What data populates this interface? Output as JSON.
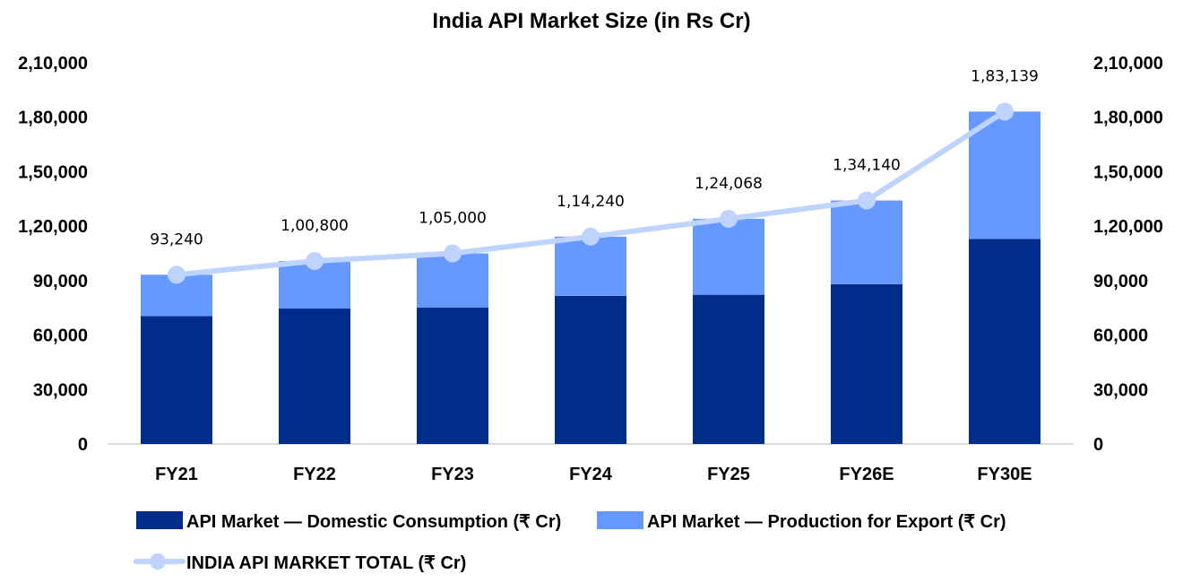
{
  "chart_data": {
    "type": "bar",
    "stacked": true,
    "title": "India API Market Size (in Rs Cr)",
    "xlabel": "",
    "ylabel": "",
    "categories": [
      "FY21",
      "FY22",
      "FY23",
      "FY24",
      "FY25",
      "FY26E",
      "FY30E"
    ],
    "series": [
      {
        "name": "API Market — Domestic Consumption (₹ Cr)",
        "type": "bar",
        "color": "#002D8A",
        "values": [
          70400,
          74600,
          75200,
          81600,
          82200,
          88000,
          113000
        ]
      },
      {
        "name": "API Market — Production for Export (₹ Cr)",
        "type": "bar",
        "color": "#6699FF",
        "values": [
          22840,
          26200,
          29800,
          32640,
          41868,
          46140,
          70139
        ]
      },
      {
        "name": "INDIA API MARKET TOTAL (₹ Cr)",
        "type": "line",
        "color": "#BFD3FF",
        "values": [
          93240,
          100800,
          105000,
          114240,
          124068,
          134140,
          183139
        ]
      }
    ],
    "data_labels": [
      "93,240",
      "1,00,800",
      "1,05,000",
      "1,14,240",
      "1,24,068",
      "1,34,140",
      "1,83,139"
    ],
    "ylim": [
      0,
      210000
    ],
    "yticks": [
      0,
      30000,
      60000,
      90000,
      120000,
      150000,
      180000,
      210000
    ],
    "ytick_labels": [
      "0",
      "30,000",
      "60,000",
      "90,000",
      "1,20,000",
      "1,50,000",
      "1,80,000",
      "2,10,000"
    ],
    "secondary_axis": true,
    "grid": false,
    "legend_position": "bottom"
  }
}
